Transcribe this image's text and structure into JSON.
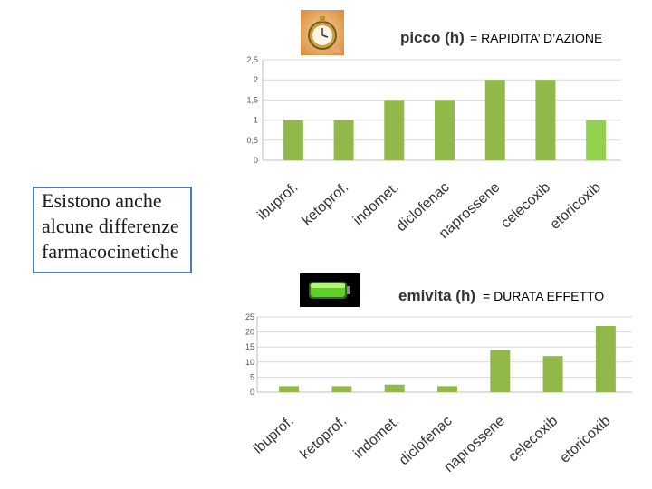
{
  "note": {
    "lines": [
      "Esistono anche",
      "alcune differenze",
      "farmacocinetiche"
    ]
  },
  "icons": {
    "top": "stopwatch-icon",
    "bottom": "battery-icon"
  },
  "colors": {
    "bar": "#92b84a",
    "bar_highlight": "#92d050",
    "grid": "#d9d9d9",
    "axis": "#bfbfbf",
    "note_border": "#4a7ebb"
  },
  "chart_data": [
    {
      "type": "bar",
      "title": "picco (h)",
      "subtitle": "= RAPIDITA’ D’AZIONE",
      "categories": [
        "ibuprof.",
        "ketoprof.",
        "indomet.",
        "diclofenac",
        "naprossene",
        "celecoxib",
        "etoricoxib"
      ],
      "values": [
        1,
        1,
        1.5,
        1.5,
        2,
        2,
        1
      ],
      "highlight_index": 6,
      "ylim": [
        0,
        2.5
      ],
      "yticks": [
        "0",
        "0,5",
        "1",
        "1,5",
        "2",
        "2,5"
      ],
      "grid": true,
      "xlabel": "",
      "ylabel": ""
    },
    {
      "type": "bar",
      "title": "emivita (h)",
      "subtitle": "= DURATA EFFETTO",
      "categories": [
        "ibuprof.",
        "ketoprof.",
        "indomet.",
        "diclofenac",
        "naprossene",
        "celecoxib",
        "etoricoxib"
      ],
      "values": [
        2,
        2,
        2.5,
        2,
        14,
        12,
        22
      ],
      "ylim": [
        0,
        25
      ],
      "yticks": [
        "0",
        "5",
        "10",
        "15",
        "20",
        "25"
      ],
      "grid": true,
      "xlabel": "",
      "ylabel": ""
    }
  ]
}
